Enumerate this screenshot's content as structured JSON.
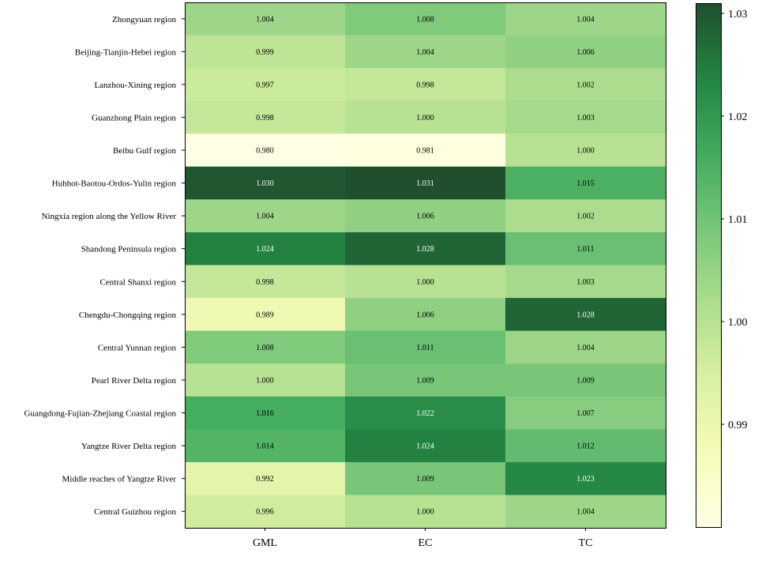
{
  "chart_data": {
    "type": "heatmap",
    "title": "",
    "xlabel": "",
    "ylabel": "",
    "columns": [
      "GML",
      "EC",
      "TC"
    ],
    "rows": [
      "Zhongyuan region",
      "Beijing-Tianjin-Hebei region",
      "Lanzhou-Xining region",
      "Guanzhong Plain region",
      "Beibu Gulf region",
      "Huhhot-Baotou-Ordos-Yulin region",
      "Ningxia region along the Yellow River",
      "Shandong Peninsula region",
      "Central Shanxi region",
      "Chengdu-Chongqing region",
      "Central Yunnan region",
      "Pearl River Delta region",
      "Guangdong-Fujian-Zhejiang Coastal region",
      "Yangtze River Delta region",
      "Middle reaches of Yangtze River",
      "Central Guizhou region"
    ],
    "values": [
      [
        "1.004",
        "1.008",
        "1.004"
      ],
      [
        "0.999",
        "1.004",
        "1.006"
      ],
      [
        "0.997",
        "0.998",
        "1.002"
      ],
      [
        "0.998",
        "1.000",
        "1.003"
      ],
      [
        "0.980",
        "0.981",
        "1.000"
      ],
      [
        "1.030",
        "1.031",
        "1.015"
      ],
      [
        "1.004",
        "1.006",
        "1.002"
      ],
      [
        "1.024",
        "1.028",
        "1.011"
      ],
      [
        "0.998",
        "1.000",
        "1.003"
      ],
      [
        "0.989",
        "1.006",
        "1.028"
      ],
      [
        "1.008",
        "1.011",
        "1.004"
      ],
      [
        "1.000",
        "1.009",
        "1.009"
      ],
      [
        "1.016",
        "1.022",
        "1.007"
      ],
      [
        "1.014",
        "1.024",
        "1.012"
      ],
      [
        "0.992",
        "1.009",
        "1.023"
      ],
      [
        "0.996",
        "1.000",
        "1.004"
      ]
    ],
    "colorscale": {
      "name": "YlGn",
      "vmin": 0.98,
      "vmax": 1.031,
      "ticks": [
        "0.99",
        "1.00",
        "1.01",
        "1.02",
        "1.03"
      ],
      "stops": [
        "#ffffe5",
        "#f7fcb9",
        "#d9f0a3",
        "#addd8e",
        "#78c679",
        "#41ab5d",
        "#238443",
        "#1f4f2d"
      ]
    },
    "grid": false,
    "legend": "colorbar-right"
  }
}
